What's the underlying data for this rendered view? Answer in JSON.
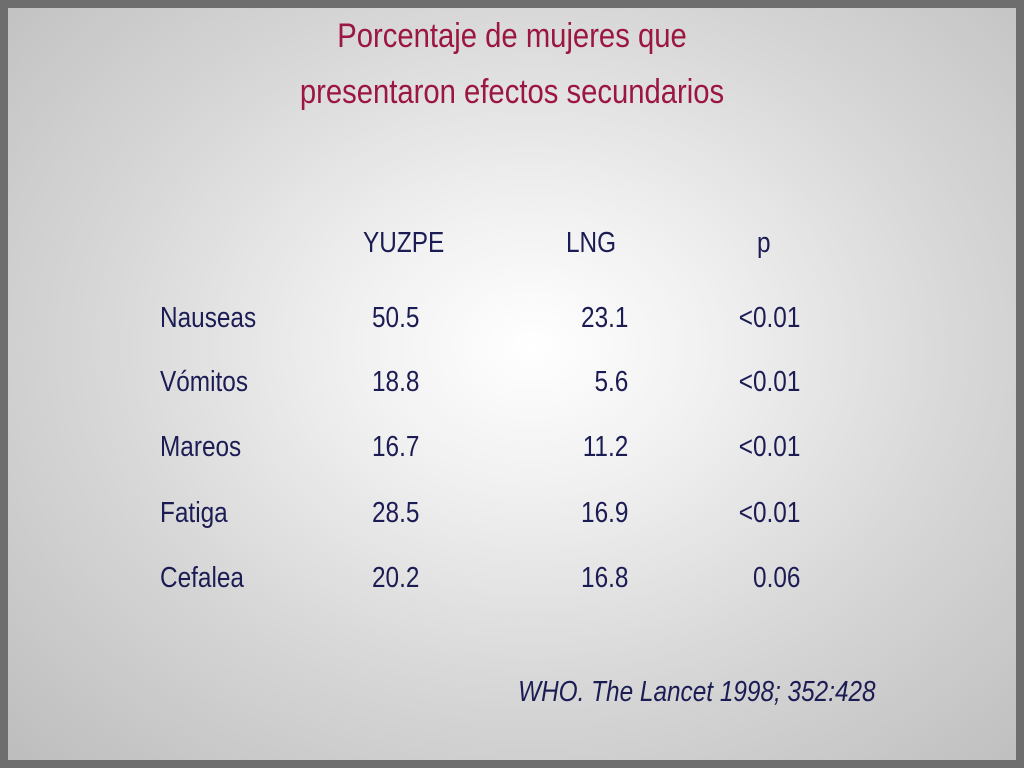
{
  "title": "Porcentaje de mujeres que presentaron efectos secundarios",
  "table": {
    "header": [
      "YUZPE",
      "LNG",
      "p"
    ],
    "rows": [
      [
        "Nauseas",
        50.5,
        23.1,
        "<0.01"
      ],
      [
        "Vómitos",
        18.8,
        5.6,
        "<0.01"
      ],
      [
        "Mareos",
        16.7,
        11.2,
        "<0.01"
      ],
      [
        "Fatiga",
        28.5,
        16.9,
        "<0.01"
      ],
      [
        "Cefalea",
        20.2,
        16.8,
        0.06
      ]
    ]
  },
  "citation": "WHO. The Lancet 1998; 352:428"
}
